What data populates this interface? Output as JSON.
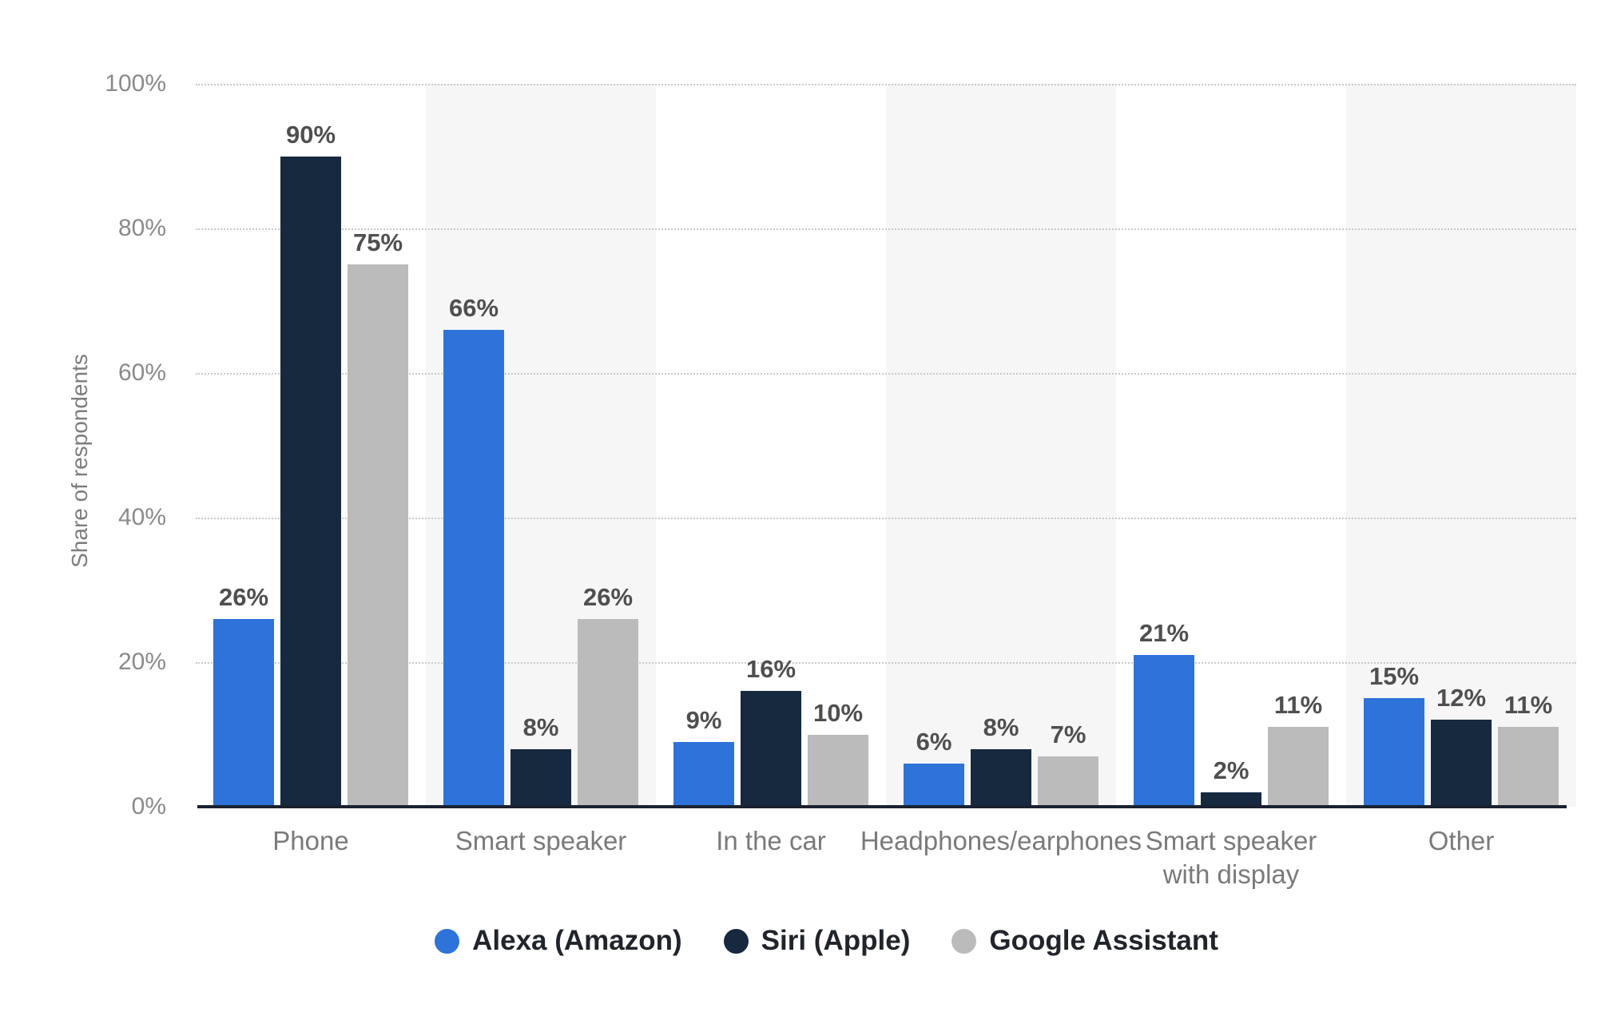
{
  "chart_data": {
    "type": "bar",
    "title": "",
    "ylabel": "Share of respondents",
    "ylim": [
      0,
      100
    ],
    "yticks": [
      0,
      20,
      40,
      60,
      80,
      100
    ],
    "ytick_labels": [
      "0%",
      "20%",
      "40%",
      "60%",
      "80%",
      "100%"
    ],
    "value_suffix": "%",
    "grid": "horizontal-dotted",
    "legend_position": "bottom",
    "categories": [
      "Phone",
      "Smart speaker",
      "In the car",
      "Headphones/earphones",
      "Smart speaker with display",
      "Other"
    ],
    "series": [
      {
        "name": "Alexa (Amazon)",
        "color": "#2d73da",
        "values": [
          26,
          66,
          9,
          6,
          21,
          15
        ]
      },
      {
        "name": "Siri (Apple)",
        "color": "#16293f",
        "values": [
          90,
          8,
          16,
          8,
          2,
          12
        ]
      },
      {
        "name": "Google Assistant",
        "color": "#bbbbbb",
        "values": [
          75,
          26,
          10,
          7,
          11,
          11
        ]
      }
    ]
  },
  "style_colors": {
    "background": "#ffffff",
    "band_fill": "#f6f6f7",
    "gridline": "#c9c9c9",
    "axis_line": "#1a2230",
    "tick_label": "#8a8a8a",
    "category_label": "#7a7a7a",
    "value_label": "#4f4f4f",
    "legend_label": "#20242b"
  }
}
